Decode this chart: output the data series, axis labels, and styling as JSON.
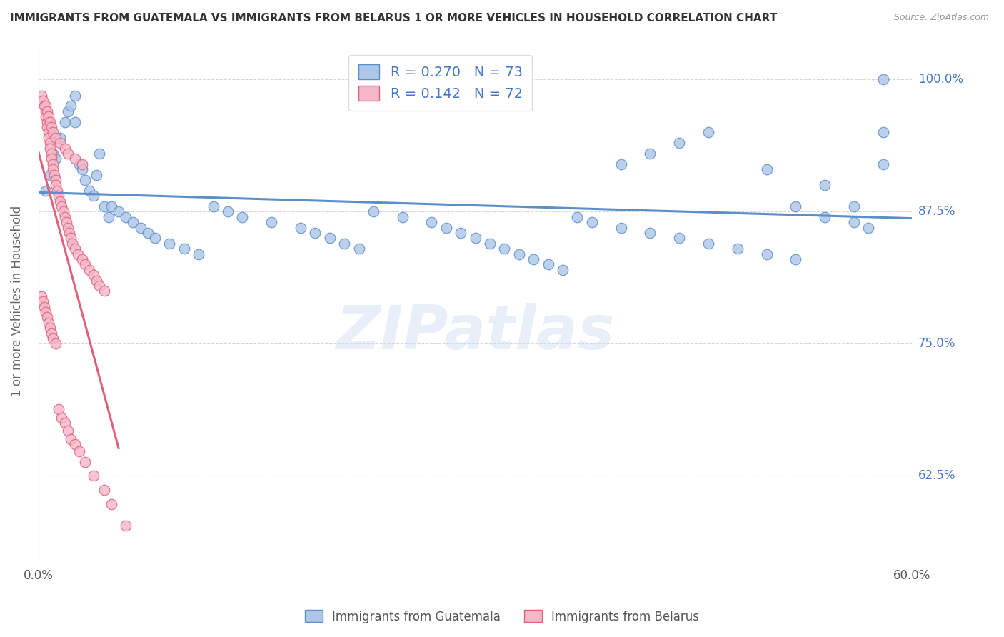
{
  "title": "IMMIGRANTS FROM GUATEMALA VS IMMIGRANTS FROM BELARUS 1 OR MORE VEHICLES IN HOUSEHOLD CORRELATION CHART",
  "source": "Source: ZipAtlas.com",
  "ylabel": "1 or more Vehicles in Household",
  "yticks_labels": [
    "62.5%",
    "75.0%",
    "87.5%",
    "100.0%"
  ],
  "yticks_vals": [
    0.625,
    0.75,
    0.875,
    1.0
  ],
  "xmin": 0.0,
  "xmax": 0.6,
  "ymin": 0.545,
  "ymax": 1.035,
  "blue_color": "#aec6e8",
  "blue_edge_color": "#5b8fc9",
  "pink_color": "#f5b8c8",
  "pink_edge_color": "#e0607a",
  "blue_line_color": "#5b8fc9",
  "pink_line_color": "#e0607a",
  "watermark_text": "ZIPatlas",
  "legend_blue": "R = 0.270   N = 73",
  "legend_pink": "R = 0.142   N = 72",
  "bottom_legend_blue": "Immigrants from Guatemala",
  "bottom_legend_pink": "Immigrants from Belarus",
  "blue_x": [
    0.005,
    0.008,
    0.01,
    0.012,
    0.015,
    0.018,
    0.02,
    0.022,
    0.025,
    0.025,
    0.028,
    0.03,
    0.032,
    0.035,
    0.038,
    0.04,
    0.042,
    0.045,
    0.048,
    0.05,
    0.055,
    0.06,
    0.065,
    0.07,
    0.075,
    0.08,
    0.09,
    0.1,
    0.11,
    0.12,
    0.13,
    0.14,
    0.16,
    0.18,
    0.19,
    0.2,
    0.21,
    0.22,
    0.23,
    0.25,
    0.27,
    0.28,
    0.29,
    0.3,
    0.31,
    0.32,
    0.33,
    0.34,
    0.35,
    0.36,
    0.37,
    0.38,
    0.4,
    0.42,
    0.44,
    0.46,
    0.48,
    0.5,
    0.52,
    0.54,
    0.56,
    0.57,
    0.58,
    0.4,
    0.42,
    0.44,
    0.46,
    0.5,
    0.52,
    0.54,
    0.56,
    0.58,
    0.58
  ],
  "blue_y": [
    0.895,
    0.91,
    0.93,
    0.925,
    0.945,
    0.96,
    0.97,
    0.975,
    0.985,
    0.96,
    0.92,
    0.915,
    0.905,
    0.895,
    0.89,
    0.91,
    0.93,
    0.88,
    0.87,
    0.88,
    0.875,
    0.87,
    0.865,
    0.86,
    0.855,
    0.85,
    0.845,
    0.84,
    0.835,
    0.88,
    0.875,
    0.87,
    0.865,
    0.86,
    0.855,
    0.85,
    0.845,
    0.84,
    0.875,
    0.87,
    0.865,
    0.86,
    0.855,
    0.85,
    0.845,
    0.84,
    0.835,
    0.83,
    0.825,
    0.82,
    0.87,
    0.865,
    0.86,
    0.855,
    0.85,
    0.845,
    0.84,
    0.835,
    0.83,
    0.87,
    0.865,
    0.86,
    1.0,
    0.92,
    0.93,
    0.94,
    0.95,
    0.915,
    0.88,
    0.9,
    0.88,
    0.92,
    0.95
  ],
  "pink_x": [
    0.002,
    0.003,
    0.004,
    0.005,
    0.005,
    0.006,
    0.006,
    0.007,
    0.007,
    0.008,
    0.008,
    0.009,
    0.009,
    0.01,
    0.01,
    0.011,
    0.012,
    0.012,
    0.013,
    0.014,
    0.015,
    0.016,
    0.017,
    0.018,
    0.019,
    0.02,
    0.021,
    0.022,
    0.023,
    0.025,
    0.027,
    0.03,
    0.032,
    0.035,
    0.038,
    0.04,
    0.042,
    0.045,
    0.005,
    0.006,
    0.007,
    0.008,
    0.009,
    0.01,
    0.012,
    0.015,
    0.018,
    0.02,
    0.025,
    0.03,
    0.002,
    0.003,
    0.004,
    0.005,
    0.006,
    0.007,
    0.008,
    0.009,
    0.01,
    0.012,
    0.014,
    0.016,
    0.018,
    0.02,
    0.022,
    0.025,
    0.028,
    0.032,
    0.038,
    0.045,
    0.05,
    0.06
  ],
  "pink_y": [
    0.985,
    0.98,
    0.975,
    0.97,
    0.965,
    0.96,
    0.955,
    0.95,
    0.945,
    0.94,
    0.935,
    0.93,
    0.925,
    0.92,
    0.915,
    0.91,
    0.905,
    0.9,
    0.895,
    0.89,
    0.885,
    0.88,
    0.875,
    0.87,
    0.865,
    0.86,
    0.855,
    0.85,
    0.845,
    0.84,
    0.835,
    0.83,
    0.825,
    0.82,
    0.815,
    0.81,
    0.805,
    0.8,
    0.975,
    0.97,
    0.965,
    0.96,
    0.955,
    0.95,
    0.945,
    0.94,
    0.935,
    0.93,
    0.925,
    0.92,
    0.795,
    0.79,
    0.785,
    0.78,
    0.775,
    0.77,
    0.765,
    0.76,
    0.755,
    0.75,
    0.688,
    0.68,
    0.675,
    0.668,
    0.66,
    0.655,
    0.648,
    0.638,
    0.625,
    0.612,
    0.598,
    0.578
  ],
  "pink_trend_xmax": 0.055
}
